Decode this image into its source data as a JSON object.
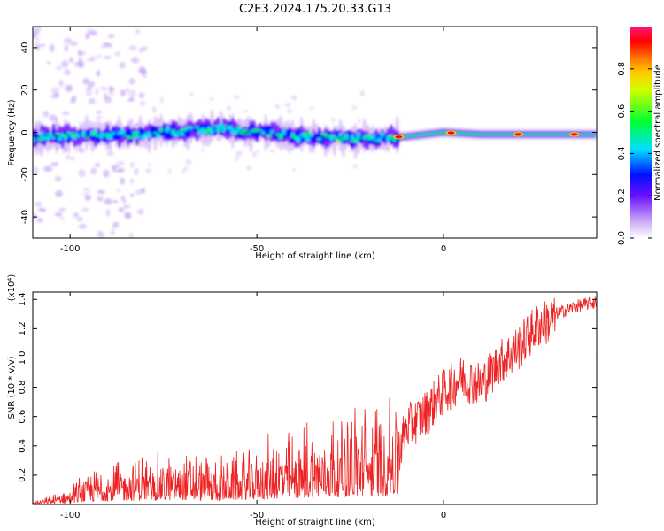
{
  "figure": {
    "title": "C2E3.2024.175.20.33.G13"
  },
  "chart_data": [
    {
      "type": "heatmap",
      "xlabel": "Height of straight line (km)",
      "ylabel": "Frequency (Hz)",
      "xlim": [
        -110,
        41
      ],
      "ylim": [
        -50,
        50
      ],
      "x_ticks": [
        -100,
        -50,
        0
      ],
      "y_ticks": [
        -40,
        -20,
        0,
        20,
        40
      ],
      "grid": false,
      "colorbar": {
        "label": "Normalized spectral amplitude",
        "ticks": [
          0.0,
          0.2,
          0.4,
          0.6,
          0.8
        ],
        "range": [
          0,
          1
        ],
        "colormap": [
          "#ffffff",
          "#d9c2f5",
          "#7a1fff",
          "#0000ff",
          "#00ffff",
          "#00ff00",
          "#ffff00",
          "#ff7f00",
          "#ff0000",
          "#ff1493"
        ]
      },
      "ridge": {
        "description_points_x": [
          -110,
          -80,
          -60,
          -40,
          -20,
          -10,
          0,
          10,
          20,
          41
        ],
        "center_freq_hz": [
          -2,
          -1,
          2,
          -2,
          -3,
          -2,
          0,
          -1,
          -1,
          -1
        ],
        "peak_positions_x": [
          -12,
          2,
          20,
          35
        ]
      }
    },
    {
      "type": "line",
      "xlabel": "Height of straight line (km)",
      "ylabel": "SNR (10 * v/v)",
      "y_multiplier": "(x10⁴)",
      "xlim": [
        -110,
        41
      ],
      "ylim": [
        0,
        14500
      ],
      "x_ticks": [
        -100,
        -50,
        0
      ],
      "y_ticks": [
        2000,
        4000,
        6000,
        8000,
        10000,
        12000,
        14000
      ],
      "y_tick_labels": [
        "0.2",
        "0.4",
        "0.6",
        "0.8",
        "1.0",
        "1.2",
        "1.4"
      ],
      "grid": false,
      "series": [
        {
          "color": "#ee2222",
          "x": [
            -110,
            -105,
            -100,
            -95,
            -90,
            -85,
            -80,
            -75,
            -70,
            -65,
            -60,
            -55,
            -50,
            -45,
            -40,
            -35,
            -30,
            -25,
            -20,
            -15,
            -12,
            -10,
            -5,
            0,
            5,
            10,
            15,
            20,
            25,
            30,
            35,
            41
          ],
          "y": [
            100,
            300,
            700,
            1200,
            1600,
            1700,
            1800,
            1800,
            2000,
            1800,
            1700,
            1900,
            2200,
            2500,
            2700,
            3000,
            3200,
            3500,
            3700,
            3900,
            4000,
            5500,
            6500,
            8000,
            9000,
            8500,
            10000,
            11000,
            12500,
            13000,
            13500,
            13800
          ]
        }
      ]
    }
  ]
}
